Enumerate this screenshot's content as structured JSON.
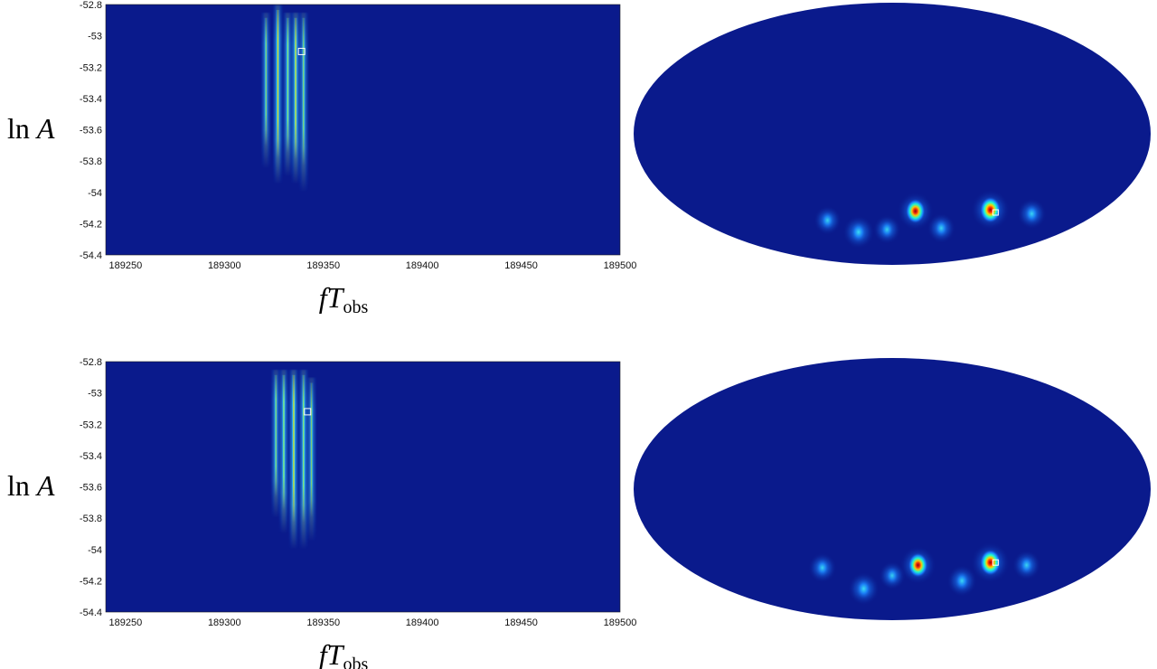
{
  "chart_data": [
    {
      "type": "heatmap",
      "panel": "top-left",
      "xlabel_parts": [
        "fT",
        "obs"
      ],
      "ylabel_parts": [
        "ln ",
        "A"
      ],
      "xlim": [
        189240,
        189500
      ],
      "ylim": [
        -54.4,
        -52.8
      ],
      "xticks": [
        "189250",
        "189300",
        "189350",
        "189400",
        "189450",
        "189500"
      ],
      "xtick_values": [
        189250,
        189300,
        189350,
        189400,
        189450,
        189500
      ],
      "yticks": [
        "-52.8",
        "-53",
        "-53.2",
        "-53.4",
        "-53.6",
        "-53.8",
        "-54",
        "-54.2",
        "-54.4"
      ],
      "ytick_values": [
        -52.8,
        -53.0,
        -53.2,
        -53.4,
        -53.6,
        -53.8,
        -54.0,
        -54.2,
        -54.4
      ],
      "background": "#0a1a8c",
      "streaks": [
        {
          "x": 189321,
          "y_top": -52.85,
          "y_bottom": -53.85,
          "peak": 0.35
        },
        {
          "x": 189327,
          "y_top": -52.8,
          "y_bottom": -53.95,
          "peak": 0.95
        },
        {
          "x": 189332,
          "y_top": -52.85,
          "y_bottom": -53.9,
          "peak": 0.6
        },
        {
          "x": 189336,
          "y_top": -52.85,
          "y_bottom": -53.95,
          "peak": 0.9
        },
        {
          "x": 189340,
          "y_top": -52.85,
          "y_bottom": -54.0,
          "peak": 0.45
        }
      ],
      "marker": {
        "x": 189339,
        "y": -53.1
      }
    },
    {
      "type": "heatmap",
      "panel": "bottom-left",
      "xlabel_parts": [
        "fT",
        "obs"
      ],
      "ylabel_parts": [
        "ln ",
        "A"
      ],
      "xlim": [
        189240,
        189500
      ],
      "ylim": [
        -54.4,
        -52.8
      ],
      "xticks": [
        "189250",
        "189300",
        "189350",
        "189400",
        "189450",
        "189500"
      ],
      "xtick_values": [
        189250,
        189300,
        189350,
        189400,
        189450,
        189500
      ],
      "yticks": [
        "-52.8",
        "-53",
        "-53.2",
        "-53.4",
        "-53.6",
        "-53.8",
        "-54",
        "-54.2",
        "-54.4"
      ],
      "ytick_values": [
        -52.8,
        -53.0,
        -53.2,
        -53.4,
        -53.6,
        -53.8,
        -54.0,
        -54.2,
        -54.4
      ],
      "background": "#0a1a8c",
      "streaks": [
        {
          "x": 189326,
          "y_top": -52.85,
          "y_bottom": -53.8,
          "peak": 0.4
        },
        {
          "x": 189330,
          "y_top": -52.85,
          "y_bottom": -53.9,
          "peak": 0.75
        },
        {
          "x": 189335,
          "y_top": -52.85,
          "y_bottom": -54.0,
          "peak": 1.0
        },
        {
          "x": 189340,
          "y_top": -52.85,
          "y_bottom": -54.0,
          "peak": 0.7
        },
        {
          "x": 189344,
          "y_top": -52.9,
          "y_bottom": -53.95,
          "peak": 0.35
        }
      ],
      "marker": {
        "x": 189342,
        "y": -53.12
      }
    },
    {
      "type": "heatmap",
      "panel": "top-right",
      "projection": "mollweide sky map",
      "background": "#0a1a8c",
      "blobs": [
        {
          "lon": 0.38,
          "lat": -0.58,
          "peak": 1.0
        },
        {
          "lon": 0.09,
          "lat": -0.59,
          "peak": 0.85
        },
        {
          "lon": -0.13,
          "lat": -0.75,
          "peak": 0.55
        },
        {
          "lon": 0.54,
          "lat": -0.61,
          "peak": 0.4
        },
        {
          "lon": 0.19,
          "lat": -0.72,
          "peak": 0.35
        },
        {
          "lon": -0.25,
          "lat": -0.66,
          "peak": 0.3
        },
        {
          "lon": -0.02,
          "lat": -0.73,
          "peak": 0.3
        }
      ],
      "marker": {
        "lon": 0.4,
        "lat": -0.6
      }
    },
    {
      "type": "heatmap",
      "panel": "bottom-right",
      "projection": "mollweide sky map",
      "background": "#0a1a8c",
      "blobs": [
        {
          "lon": 0.38,
          "lat": -0.56,
          "peak": 1.0
        },
        {
          "lon": 0.1,
          "lat": -0.58,
          "peak": 0.85
        },
        {
          "lon": -0.11,
          "lat": -0.76,
          "peak": 0.55
        },
        {
          "lon": 0.27,
          "lat": -0.7,
          "peak": 0.45
        },
        {
          "lon": 0.52,
          "lat": -0.58,
          "peak": 0.35
        },
        {
          "lon": -0.27,
          "lat": -0.6,
          "peak": 0.35
        },
        {
          "lon": 0.0,
          "lat": -0.66,
          "peak": 0.25
        }
      ],
      "marker": {
        "lon": 0.4,
        "lat": -0.56
      }
    }
  ]
}
